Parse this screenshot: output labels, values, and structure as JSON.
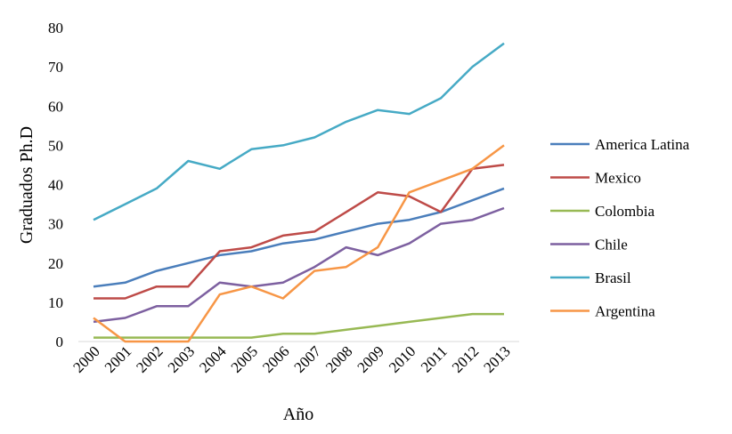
{
  "chart_data": {
    "type": "line",
    "title": "",
    "xlabel": "Año",
    "ylabel": "Graduados Ph.D",
    "ylim": [
      0,
      80
    ],
    "yticks": [
      "0",
      "10",
      "20",
      "30",
      "40",
      "50",
      "60",
      "70",
      "80"
    ],
    "categories": [
      "2000",
      "2001",
      "2002",
      "2003",
      "2004",
      "2005",
      "2006",
      "2007",
      "2008",
      "2009",
      "2010",
      "2011",
      "2012",
      "2013"
    ],
    "grid": false,
    "legend_position": "right",
    "series": [
      {
        "name": "America Latina",
        "color": "#4A7EBB",
        "values": [
          14,
          15,
          18,
          20,
          22,
          23,
          25,
          26,
          28,
          30,
          31,
          33,
          36,
          39
        ]
      },
      {
        "name": "Mexico",
        "color": "#BE4B48",
        "values": [
          11,
          11,
          14,
          14,
          23,
          24,
          27,
          28,
          33,
          38,
          37,
          33,
          44,
          45
        ]
      },
      {
        "name": "Colombia",
        "color": "#98B954",
        "values": [
          1,
          1,
          1,
          1,
          1,
          1,
          2,
          2,
          3,
          4,
          5,
          6,
          7,
          7
        ]
      },
      {
        "name": "Chile",
        "color": "#7D60A0",
        "values": [
          5,
          6,
          9,
          9,
          15,
          14,
          15,
          19,
          24,
          22,
          25,
          30,
          31,
          34
        ]
      },
      {
        "name": "Brasil",
        "color": "#46AAC5",
        "values": [
          31,
          35,
          39,
          46,
          44,
          49,
          50,
          52,
          56,
          59,
          58,
          62,
          70,
          76
        ]
      },
      {
        "name": "Argentina",
        "color": "#F79646",
        "values": [
          6,
          0,
          0,
          0,
          12,
          14,
          11,
          18,
          19,
          24,
          38,
          41,
          44,
          50
        ]
      }
    ]
  }
}
